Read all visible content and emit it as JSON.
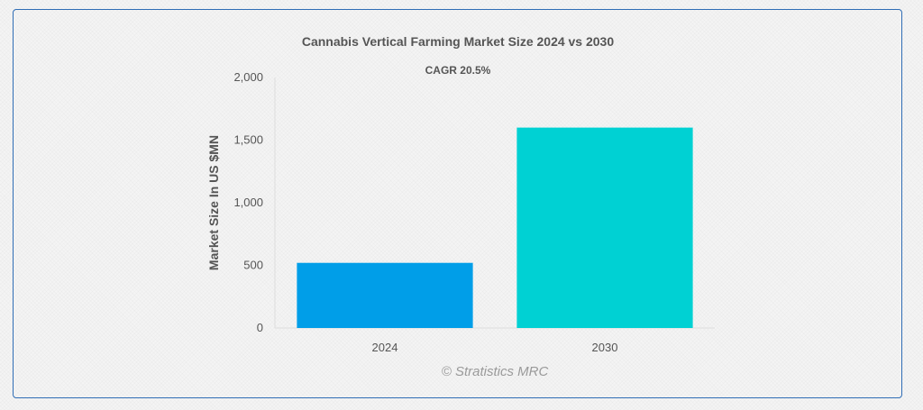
{
  "chart_data": {
    "type": "bar",
    "title": "Cannabis Vertical Farming Market Size 2024 vs 2030",
    "annotation": "CAGR 20.5%",
    "ylabel": "Market Size In US $MN",
    "xlabel": "",
    "categories": [
      "2024",
      "2030"
    ],
    "values": [
      520,
      1600
    ],
    "colors": [
      "#009ee8",
      "#00d1d3"
    ],
    "ylim": [
      0,
      2000
    ],
    "yticks": [
      0,
      500,
      1000,
      1500,
      2000
    ],
    "ytick_labels": [
      "0",
      "500",
      "1,000",
      "1,500",
      "2,000"
    ],
    "grid": false,
    "legend": "none"
  },
  "watermark": "© Stratistics MRC",
  "colors": {
    "border": "#2f6db5",
    "title": "#555555",
    "axis_text": "#555555"
  }
}
